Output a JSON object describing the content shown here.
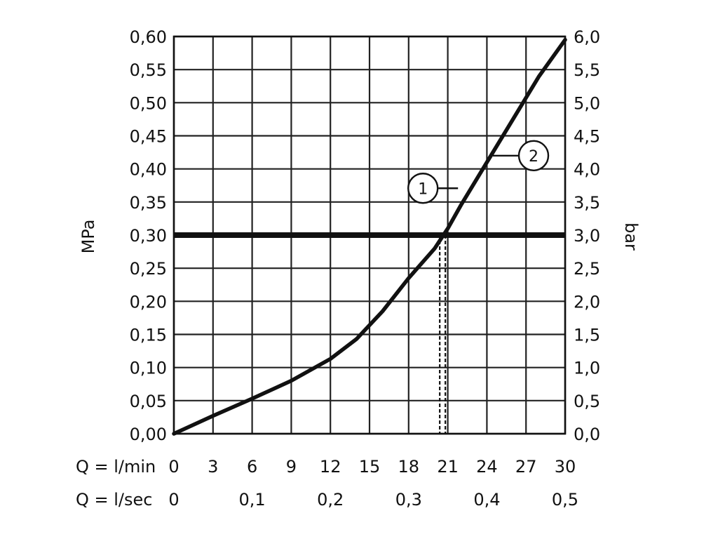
{
  "chart_data": {
    "type": "line",
    "title": "",
    "y_left": {
      "label": "MPa",
      "ticks": [
        "0,00",
        "0,05",
        "0,10",
        "0,15",
        "0,20",
        "0,25",
        "0,30",
        "0,35",
        "0,40",
        "0,45",
        "0,50",
        "0,55",
        "0,60"
      ],
      "ylim": [
        0,
        0.6
      ]
    },
    "y_right": {
      "label": "bar",
      "ticks": [
        "0,0",
        "0,5",
        "1,0",
        "1,5",
        "2,0",
        "2,5",
        "3,0",
        "3,5",
        "4,0",
        "4,5",
        "5,0",
        "5,5",
        "6,0"
      ],
      "ylim": [
        0,
        6
      ]
    },
    "x_lmin": {
      "label": "Q = l/min",
      "ticks": [
        "0",
        "3",
        "6",
        "9",
        "12",
        "15",
        "18",
        "21",
        "24",
        "27",
        "30"
      ],
      "values": [
        0,
        3,
        6,
        9,
        12,
        15,
        18,
        21,
        24,
        27,
        30
      ]
    },
    "x_lsec": {
      "label": "Q = l/sec",
      "ticks": [
        "0",
        "0,1",
        "0,2",
        "0,3",
        "0,4",
        "0,5"
      ],
      "values": [
        0,
        6,
        12,
        18,
        24,
        30
      ]
    },
    "xlim": [
      0,
      30
    ],
    "grid": true,
    "series": [
      {
        "x": [
          0,
          3,
          6,
          9,
          12,
          14,
          16,
          18,
          20,
          21,
          22,
          24,
          26,
          28,
          30
        ],
        "y": [
          0,
          0.027,
          0.053,
          0.08,
          0.113,
          0.143,
          0.185,
          0.235,
          0.28,
          0.31,
          0.345,
          0.41,
          0.475,
          0.54,
          0.595
        ]
      }
    ],
    "reference_line_y": 0.3,
    "dashed_x": 20.6,
    "markers": [
      {
        "label": "1",
        "x": 22.0,
        "y": 0.375
      },
      {
        "label": "2",
        "x": 25.0,
        "y": 0.42
      }
    ]
  }
}
